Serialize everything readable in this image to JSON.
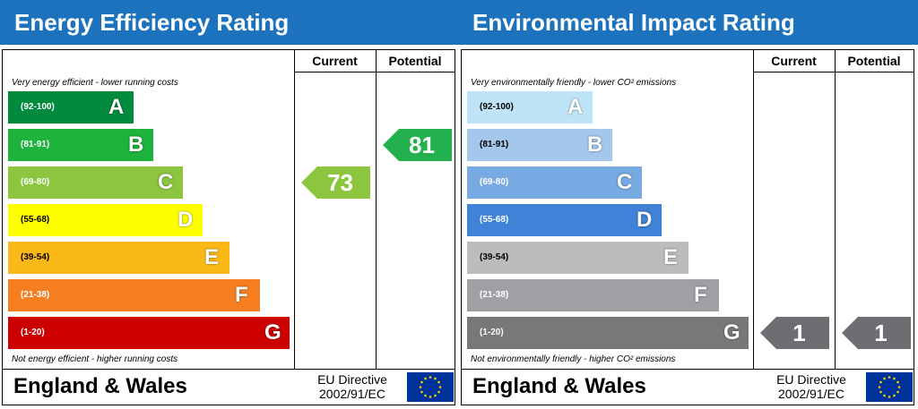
{
  "energy": {
    "title": "Energy Efficiency Rating",
    "col_current": "Current",
    "col_potential": "Potential",
    "top_note": "Very energy efficient - lower running costs",
    "bottom_note": "Not energy efficient - higher running costs",
    "footer_region": "England & Wales",
    "eu_line1": "EU Directive",
    "eu_line2": "2002/91/EC",
    "current_value": "73",
    "potential_value": "81",
    "current_color": "#8cc63f",
    "potential_color": "#22b14c",
    "bands": [
      {
        "letter": "A",
        "range": "(92-100)",
        "color": "#008a3e",
        "letter_color": "#ffffff",
        "range_color": "#ffffff"
      },
      {
        "letter": "B",
        "range": "(81-91)",
        "color": "#1db33c",
        "letter_color": "#ffffff",
        "range_color": "#ffffff"
      },
      {
        "letter": "C",
        "range": "(69-80)",
        "color": "#8cc63f",
        "letter_color": "#ffffff",
        "range_color": "#ffffff"
      },
      {
        "letter": "D",
        "range": "(55-68)",
        "color": "#ffff00",
        "letter_color": "#ffffff",
        "range_color": "#000000"
      },
      {
        "letter": "E",
        "range": "(39-54)",
        "color": "#fbb918",
        "letter_color": "#ffffff",
        "range_color": "#000000"
      },
      {
        "letter": "F",
        "range": "(21-38)",
        "color": "#f57e20",
        "letter_color": "#ffffff",
        "range_color": "#ffffff"
      },
      {
        "letter": "G",
        "range": "(1-20)",
        "color": "#cc0000",
        "letter_color": "#ffffff",
        "range_color": "#ffffff"
      }
    ]
  },
  "environment": {
    "title": "Environmental Impact Rating",
    "col_current": "Current",
    "col_potential": "Potential",
    "top_note": "Very environmentally friendly - lower CO² emissions",
    "bottom_note": "Not environmentally friendly - higher CO² emissions",
    "footer_region": "England & Wales",
    "eu_line1": "EU Directive",
    "eu_line2": "2002/91/EC",
    "current_value": "1",
    "potential_value": "1",
    "current_color": "#6d6e71",
    "potential_color": "#6d6e71",
    "bands": [
      {
        "letter": "A",
        "range": "(92-100)",
        "color": "#bfe3f7",
        "letter_color": "#ffffff",
        "range_color": "#000000"
      },
      {
        "letter": "B",
        "range": "(81-91)",
        "color": "#a4c8ec",
        "letter_color": "#ffffff",
        "range_color": "#000000"
      },
      {
        "letter": "C",
        "range": "(69-80)",
        "color": "#79a9e2",
        "letter_color": "#ffffff",
        "range_color": "#ffffff"
      },
      {
        "letter": "D",
        "range": "(55-68)",
        "color": "#3f82d8",
        "letter_color": "#ffffff",
        "range_color": "#ffffff"
      },
      {
        "letter": "E",
        "range": "(39-54)",
        "color": "#bdbcbd",
        "letter_color": "#ffffff",
        "range_color": "#000000"
      },
      {
        "letter": "F",
        "range": "(21-38)",
        "color": "#a19fa3",
        "letter_color": "#ffffff",
        "range_color": "#ffffff"
      },
      {
        "letter": "G",
        "range": "(1-20)",
        "color": "#78787a",
        "letter_color": "#ffffff",
        "range_color": "#ffffff"
      }
    ]
  },
  "chart_data": [
    {
      "type": "bar",
      "title": "Energy Efficiency Rating",
      "categories": [
        "A",
        "B",
        "C",
        "D",
        "E",
        "F",
        "G"
      ],
      "ranges": [
        "(92-100)",
        "(81-91)",
        "(69-80)",
        "(55-68)",
        "(39-54)",
        "(21-38)",
        "(1-20)"
      ],
      "current": 73,
      "potential": 81
    },
    {
      "type": "bar",
      "title": "Environmental Impact Rating",
      "categories": [
        "A",
        "B",
        "C",
        "D",
        "E",
        "F",
        "G"
      ],
      "ranges": [
        "(92-100)",
        "(81-91)",
        "(69-80)",
        "(55-68)",
        "(39-54)",
        "(21-38)",
        "(1-20)"
      ],
      "current": 1,
      "potential": 1
    }
  ]
}
